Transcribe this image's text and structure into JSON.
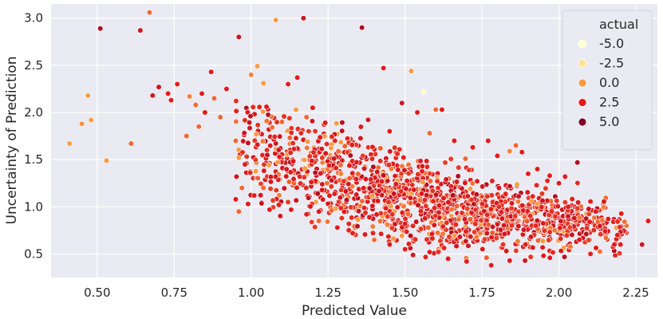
{
  "chart_data": {
    "type": "scatter",
    "xlabel": "Predicted Value",
    "ylabel": "Uncertainty of Prediction",
    "xlim": [
      0.35,
      2.32
    ],
    "ylim": [
      0.25,
      3.15
    ],
    "xticks": [
      "0.50",
      "0.75",
      "1.00",
      "1.25",
      "1.50",
      "1.75",
      "2.00",
      "2.25"
    ],
    "yticks": [
      "0.5",
      "1.0",
      "1.5",
      "2.0",
      "2.5",
      "3.0"
    ],
    "grid": true,
    "legend": {
      "title": "actual",
      "placement": "top-right",
      "entries": [
        {
          "label": "-5.0",
          "value": -5.0,
          "color": "#ffffcc"
        },
        {
          "label": "-2.5",
          "value": -2.5,
          "color": "#fee391"
        },
        {
          "label": "0.0",
          "value": 0.0,
          "color": "#fd9a3f"
        },
        {
          "label": "2.5",
          "value": 2.5,
          "color": "#e31a1c"
        },
        {
          "label": "5.0",
          "value": 5.0,
          "color": "#800026"
        }
      ]
    },
    "colors": {
      "background": "#eaeaf2",
      "grid": "#ffffff",
      "marker_edge": "#ffffff"
    },
    "points": [
      [
        0.41,
        1.67,
        0.0
      ],
      [
        0.45,
        1.88,
        0.2
      ],
      [
        0.47,
        2.18,
        0.0
      ],
      [
        0.48,
        1.92,
        0.0
      ],
      [
        0.51,
        2.89,
        3.8
      ],
      [
        0.53,
        1.49,
        0.0
      ],
      [
        0.61,
        1.67,
        1.0
      ],
      [
        0.64,
        2.87,
        3.0
      ],
      [
        0.67,
        3.06,
        1.0
      ],
      [
        0.68,
        2.18,
        3.0
      ],
      [
        0.7,
        2.27,
        3.0
      ],
      [
        0.73,
        2.2,
        2.5
      ],
      [
        0.74,
        2.13,
        2.5
      ],
      [
        0.76,
        2.3,
        2.5
      ],
      [
        0.8,
        2.17,
        0.5
      ],
      [
        0.82,
        2.08,
        1.0
      ],
      [
        0.84,
        2.2,
        2.5
      ],
      [
        0.87,
        2.43,
        2.5
      ],
      [
        0.88,
        2.15,
        1.0
      ],
      [
        0.79,
        1.75,
        1.0
      ],
      [
        0.83,
        1.85,
        1.0
      ],
      [
        0.85,
        2.0,
        2.5
      ],
      [
        0.9,
        1.95,
        1.0
      ],
      [
        0.92,
        2.25,
        2.5
      ],
      [
        0.95,
        1.7,
        1.0
      ],
      [
        0.96,
        2.8,
        3.0
      ],
      [
        0.96,
        0.95,
        1.0
      ],
      [
        0.98,
        1.45,
        2.5
      ],
      [
        1.0,
        2.4,
        0.5
      ],
      [
        1.02,
        2.49,
        0.0
      ],
      [
        1.04,
        2.31,
        0.0
      ],
      [
        1.05,
        2.06,
        2.5
      ],
      [
        1.08,
        2.98,
        0.0
      ],
      [
        1.1,
        1.9,
        1.0
      ],
      [
        1.12,
        2.3,
        2.5
      ],
      [
        1.15,
        2.37,
        2.5
      ],
      [
        1.17,
        3.0,
        3.0
      ],
      [
        1.18,
        1.95,
        1.0
      ],
      [
        1.2,
        2.05,
        2.5
      ],
      [
        1.36,
        2.9,
        3.8
      ],
      [
        1.43,
        2.47,
        2.5
      ],
      [
        1.52,
        2.44,
        0.0
      ],
      [
        1.56,
        2.22,
        -4.8
      ],
      [
        1.6,
        2.03,
        1.0
      ],
      [
        1.62,
        2.03,
        2.5
      ],
      [
        1.54,
        2.0,
        2.5
      ],
      [
        1.49,
        2.1,
        3.0
      ],
      [
        1.45,
        1.8,
        2.5
      ],
      [
        1.58,
        1.78,
        1.0
      ],
      [
        1.66,
        1.7,
        2.5
      ],
      [
        1.72,
        1.63,
        2.5
      ],
      [
        1.77,
        1.7,
        2.5
      ],
      [
        1.8,
        1.54,
        2.5
      ],
      [
        1.84,
        1.59,
        0.5
      ],
      [
        1.86,
        1.65,
        1.0
      ],
      [
        1.88,
        1.58,
        2.5
      ],
      [
        1.9,
        1.35,
        2.5
      ],
      [
        1.93,
        1.4,
        2.5
      ],
      [
        1.97,
        1.33,
        2.5
      ],
      [
        2.0,
        1.25,
        2.5
      ],
      [
        2.02,
        1.32,
        2.5
      ],
      [
        2.06,
        1.47,
        3.8
      ],
      [
        2.03,
        1.0,
        2.5
      ],
      [
        2.05,
        0.88,
        3.0
      ],
      [
        2.1,
        0.84,
        2.5
      ],
      [
        2.12,
        0.95,
        2.5
      ],
      [
        2.15,
        0.74,
        2.5
      ],
      [
        2.16,
        0.87,
        2.5
      ],
      [
        2.18,
        0.6,
        2.5
      ],
      [
        2.19,
        0.7,
        2.5
      ],
      [
        2.2,
        0.6,
        2.5
      ],
      [
        2.27,
        0.6,
        3.0
      ],
      [
        2.29,
        0.85,
        2.5
      ],
      [
        1.64,
        0.45,
        2.5
      ],
      [
        1.7,
        0.42,
        2.5
      ],
      [
        1.78,
        0.38,
        2.5
      ],
      [
        1.84,
        0.43,
        2.5
      ],
      [
        1.89,
        0.43,
        3.0
      ],
      [
        1.95,
        0.48,
        2.5
      ],
      [
        1.58,
        0.52,
        2.5
      ],
      [
        1.5,
        0.55,
        2.5
      ],
      [
        1.45,
        0.6,
        2.5
      ],
      [
        1.4,
        0.65,
        1.0
      ],
      [
        1.33,
        0.72,
        2.5
      ],
      [
        1.28,
        0.78,
        2.5
      ],
      [
        1.22,
        0.85,
        1.0
      ],
      [
        1.18,
        0.92,
        2.5
      ],
      [
        1.13,
        0.97,
        2.5
      ],
      [
        1.09,
        1.02,
        2.5
      ],
      [
        1.06,
        0.97,
        2.5
      ],
      [
        1.04,
        1.2,
        1.0
      ],
      [
        1.01,
        1.12,
        2.5
      ],
      [
        0.99,
        1.03,
        2.5
      ],
      [
        0.97,
        1.2,
        1.0
      ],
      [
        0.96,
        1.52,
        0.0
      ],
      [
        0.95,
        1.08,
        2.5
      ]
    ],
    "cloud": {
      "n": 1900,
      "x_range": [
        0.95,
        2.22
      ],
      "center_line": [
        [
          0.95,
          1.62
        ],
        [
          1.25,
          1.36
        ],
        [
          1.5,
          1.08
        ],
        [
          1.75,
          0.93
        ],
        [
          2.0,
          0.86
        ],
        [
          2.2,
          0.78
        ]
      ]
    }
  }
}
